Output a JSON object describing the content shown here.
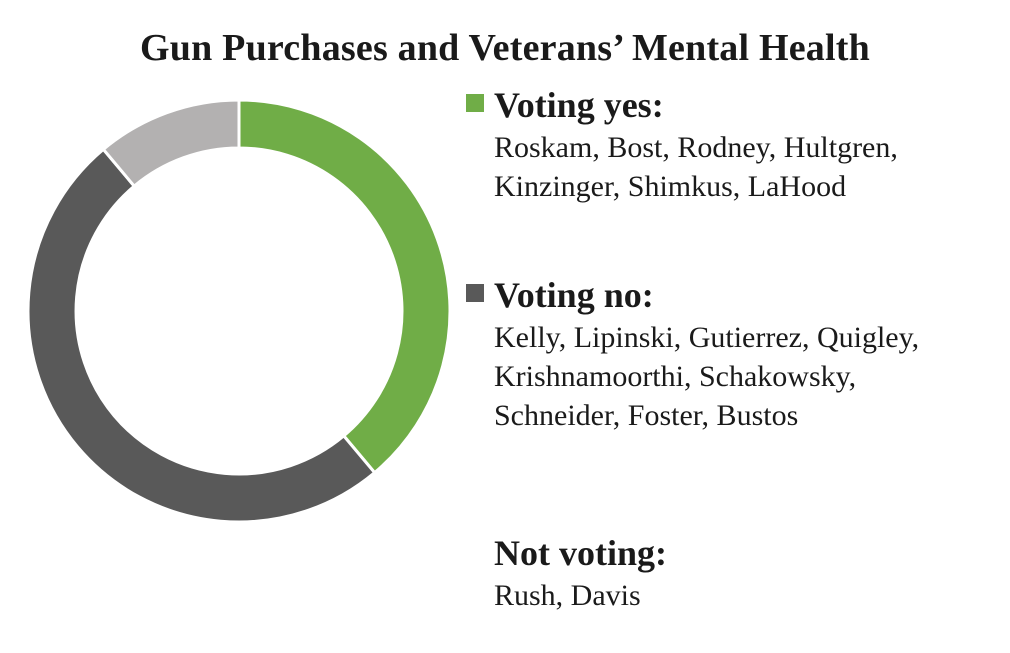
{
  "chart_data": {
    "type": "pie",
    "title": "Gun Purchases and Veterans’ Mental Health",
    "series": [
      {
        "name": "Voting yes:",
        "value": 7,
        "color": "#70ad47",
        "members": "Roskam, Bost, Rodney, Hultgren, Kinzinger, Shimkus, LaHood"
      },
      {
        "name": "Voting no:",
        "value": 9,
        "color": "#595959",
        "members": "Kelly, Lipinski, Gutierrez, Quigley, Krishnamoorthi, Schakowsky, Schneider, Foster, Bustos"
      },
      {
        "name": "Not voting:",
        "value": 2,
        "color": "#b3b1b1",
        "members": "Rush, Davis"
      }
    ],
    "legend_position": "right"
  }
}
